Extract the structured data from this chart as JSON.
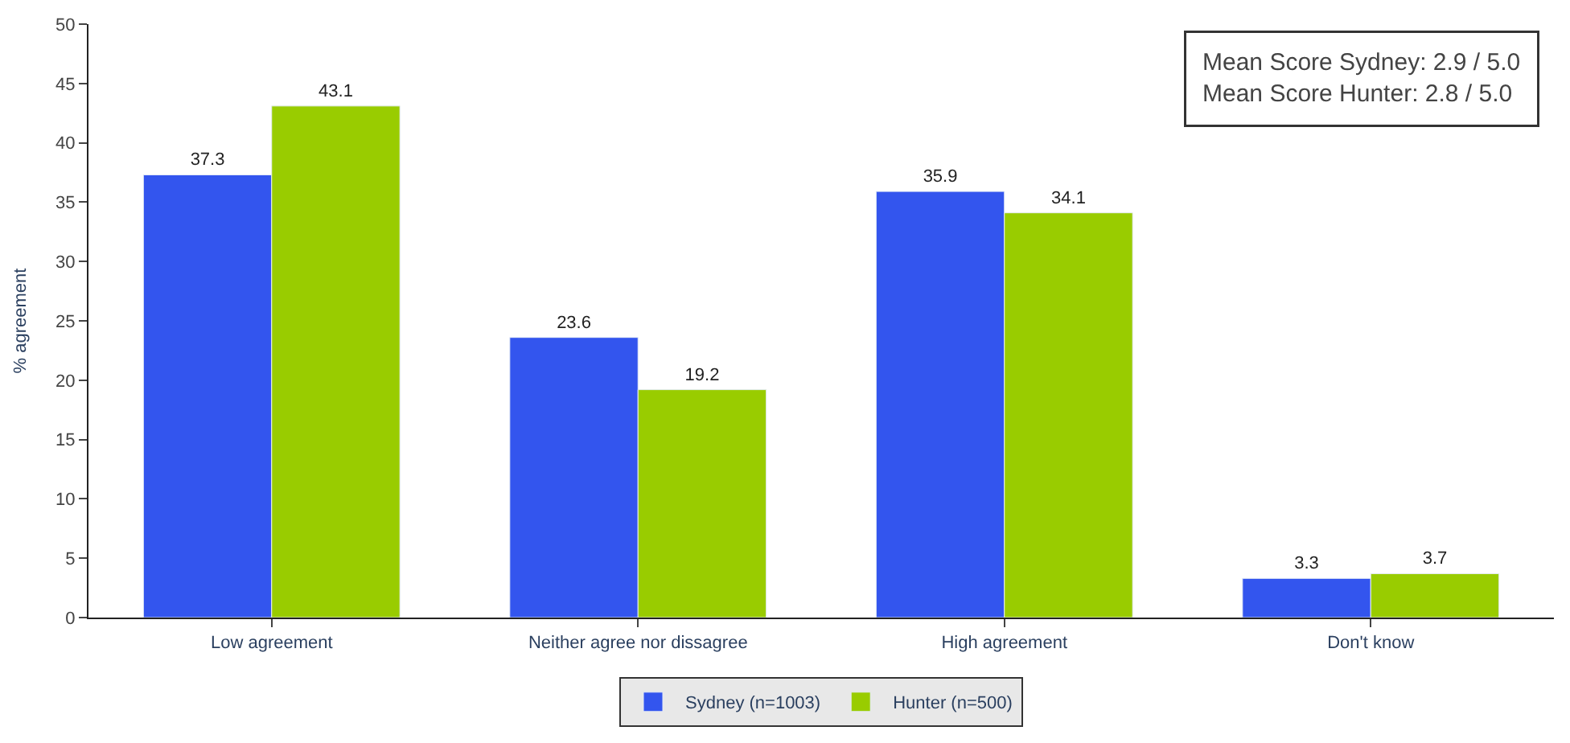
{
  "chart_data": {
    "type": "bar",
    "ylabel": "% agreement",
    "categories": [
      "Low agreement",
      "Neither agree nor dissagree",
      "High agreement",
      "Don't know"
    ],
    "series": [
      {
        "name": "Sydney (n=1003)",
        "color": "#3355ee",
        "values": [
          37.3,
          23.6,
          35.9,
          3.3
        ]
      },
      {
        "name": "Hunter (n=500)",
        "color": "#99cc00",
        "values": [
          43.1,
          19.2,
          34.1,
          3.7
        ]
      }
    ],
    "ylim": [
      0,
      50
    ],
    "yticks": [
      0,
      5,
      10,
      15,
      20,
      25,
      30,
      35,
      40,
      45,
      50
    ],
    "data_labels": true,
    "legend": "bottom",
    "annotations": [
      "Mean Score Sydney: 2.9 / 5.0",
      "Mean Score Hunter: 2.8 / 5.0"
    ]
  }
}
